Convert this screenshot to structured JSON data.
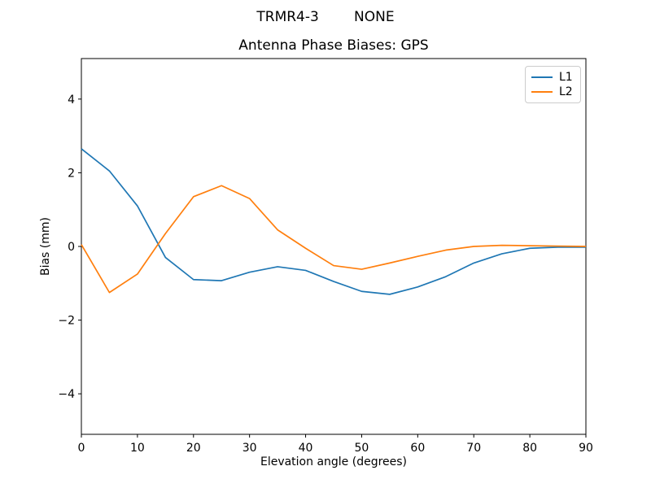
{
  "figure": {
    "suptitle": "TRMR4-3        NONE"
  },
  "chart_data": {
    "type": "line",
    "suptitle": "TRMR4-3        NONE",
    "title": "Antenna Phase Biases: GPS",
    "xlabel": "Elevation angle (degrees)",
    "ylabel": "Bias (mm)",
    "xlim": [
      0,
      90
    ],
    "ylim": [
      -5.1,
      5.1
    ],
    "xticks": [
      0,
      10,
      20,
      30,
      40,
      50,
      60,
      70,
      80,
      90
    ],
    "xticklabels": [
      "0",
      "10",
      "20",
      "30",
      "40",
      "50",
      "60",
      "70",
      "80",
      "90"
    ],
    "yticks": [
      -4,
      -2,
      0,
      2,
      4
    ],
    "yticklabels": [
      "−4",
      "−2",
      "0",
      "2",
      "4"
    ],
    "grid": false,
    "legend_position": "upper right",
    "x": [
      0,
      5,
      10,
      15,
      20,
      25,
      30,
      35,
      40,
      45,
      50,
      55,
      60,
      65,
      70,
      75,
      80,
      85,
      90
    ],
    "series": [
      {
        "name": "L1",
        "color": "#1f77b4",
        "values": [
          2.65,
          2.05,
          1.1,
          -0.3,
          -0.9,
          -0.93,
          -0.7,
          -0.55,
          -0.65,
          -0.95,
          -1.22,
          -1.3,
          -1.1,
          -0.82,
          -0.45,
          -0.2,
          -0.05,
          -0.02,
          -0.02
        ]
      },
      {
        "name": "L2",
        "color": "#ff7f0e",
        "values": [
          0.05,
          -1.25,
          -0.75,
          0.35,
          1.35,
          1.65,
          1.3,
          0.45,
          -0.05,
          -0.52,
          -0.62,
          -0.45,
          -0.27,
          -0.1,
          0.0,
          0.03,
          0.02,
          0.01,
          0.0
        ]
      }
    ],
    "style": {
      "spine_color": "#000000",
      "tick_color": "#000000",
      "background": "#ffffff",
      "line_width": 1.7
    }
  }
}
